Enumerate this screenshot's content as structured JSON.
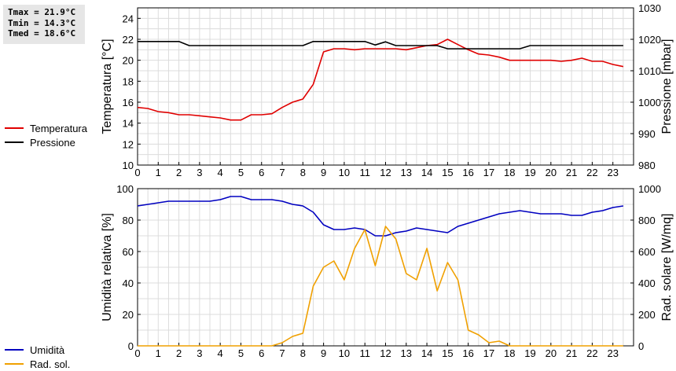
{
  "stats": {
    "tmax": "Tmax = 21.9°C",
    "tmin": "Tmin = 14.3°C",
    "tmed": "Tmed = 18.6°C"
  },
  "chart_data": [
    {
      "type": "line",
      "xlim": [
        0,
        24
      ],
      "x_ticks": [
        "0",
        "1",
        "2",
        "3",
        "4",
        "5",
        "6",
        "7",
        "8",
        "9",
        "10",
        "11",
        "12",
        "13",
        "14",
        "15",
        "16",
        "17",
        "18",
        "19",
        "20",
        "21",
        "22",
        "23"
      ],
      "ylabel_left": "Temperatura [°C]",
      "ylabel_right": "Pressione [mbar]",
      "ylim_left": [
        10,
        25
      ],
      "yticks_left": [
        10,
        12,
        14,
        16,
        18,
        20,
        22,
        24
      ],
      "ylim_right": [
        980,
        1030
      ],
      "yticks_right": [
        980,
        990,
        1000,
        1010,
        1020,
        1030
      ],
      "grid": true,
      "series": [
        {
          "name": "Temperatura",
          "axis": "left",
          "color": "#e00000",
          "x": [
            0,
            0.5,
            1,
            1.5,
            2,
            2.5,
            3,
            3.5,
            4,
            4.5,
            5,
            5.5,
            6,
            6.5,
            7,
            7.5,
            8,
            8.5,
            9,
            9.5,
            10,
            10.5,
            11,
            11.5,
            12,
            12.5,
            13,
            13.5,
            14,
            14.5,
            15,
            15.5,
            16,
            16.5,
            17,
            17.5,
            18,
            18.5,
            19,
            19.5,
            20,
            20.5,
            21,
            21.5,
            22,
            22.5,
            23,
            23.5
          ],
          "y": [
            15.5,
            15.4,
            15.1,
            15.0,
            14.8,
            14.8,
            14.7,
            14.6,
            14.5,
            14.3,
            14.3,
            14.8,
            14.8,
            14.9,
            15.5,
            16.0,
            16.3,
            17.7,
            20.8,
            21.1,
            21.1,
            21.0,
            21.1,
            21.1,
            21.1,
            21.1,
            21.0,
            21.2,
            21.4,
            21.5,
            22.0,
            21.5,
            21.0,
            20.6,
            20.5,
            20.3,
            20.0,
            20.0,
            20.0,
            20.0,
            20.0,
            19.9,
            20.0,
            20.2,
            19.9,
            19.9,
            19.6,
            19.4
          ]
        },
        {
          "name": "Pressione",
          "axis": "right",
          "color": "#000000",
          "x": [
            0,
            2,
            2.5,
            8,
            8.5,
            11,
            11.5,
            12,
            12.5,
            14.5,
            15,
            18.5,
            19,
            23.5
          ],
          "y": [
            1019.3,
            1019.3,
            1018.0,
            1018.0,
            1019.3,
            1019.3,
            1018.2,
            1019.2,
            1018.0,
            1018.0,
            1017.0,
            1017.0,
            1018.0,
            1018.0
          ]
        }
      ]
    },
    {
      "type": "line",
      "xlim": [
        0,
        24
      ],
      "x_ticks": [
        "0",
        "1",
        "2",
        "3",
        "4",
        "5",
        "6",
        "7",
        "8",
        "9",
        "10",
        "11",
        "12",
        "13",
        "14",
        "15",
        "16",
        "17",
        "18",
        "19",
        "20",
        "21",
        "22",
        "23"
      ],
      "ylabel_left": "Umidità relativa [%]",
      "ylabel_right": "Rad. solare [W/mq]",
      "ylim_left": [
        0,
        100
      ],
      "yticks_left": [
        0,
        20,
        40,
        60,
        80,
        100
      ],
      "ylim_right": [
        0,
        1000
      ],
      "yticks_right": [
        0,
        200,
        400,
        600,
        800,
        1000
      ],
      "grid": true,
      "series": [
        {
          "name": "Umidità",
          "axis": "left",
          "color": "#0000c0",
          "x": [
            0,
            1,
            1.5,
            2,
            3,
            3.5,
            4,
            4.5,
            5,
            5.5,
            6,
            6.5,
            7,
            7.5,
            8,
            8.5,
            9,
            9.5,
            10,
            10.5,
            11,
            11.5,
            12,
            12.5,
            13,
            13.5,
            14,
            14.5,
            15,
            15.5,
            16,
            16.5,
            17,
            17.5,
            18,
            18.5,
            19,
            19.5,
            20,
            20.5,
            21,
            21.5,
            22,
            22.5,
            23,
            23.5
          ],
          "y": [
            89,
            91,
            92,
            92,
            92,
            92,
            93,
            95,
            95,
            93,
            93,
            93,
            92,
            90,
            89,
            85,
            77,
            74,
            74,
            75,
            74,
            70,
            70,
            72,
            73,
            75,
            74,
            73,
            72,
            76,
            78,
            80,
            82,
            84,
            85,
            86,
            85,
            84,
            84,
            84,
            83,
            83,
            85,
            86,
            88,
            89
          ]
        },
        {
          "name": "Rad. sol.",
          "axis": "right",
          "color": "#f0a000",
          "x": [
            0,
            6.5,
            7,
            7.5,
            8,
            8.5,
            9,
            9.5,
            10,
            10.5,
            11,
            11.5,
            12,
            12.5,
            13,
            13.5,
            14,
            14.5,
            15,
            15.5,
            16,
            16.5,
            17,
            17.5,
            18,
            23.5
          ],
          "y": [
            0,
            0,
            20,
            60,
            80,
            380,
            500,
            540,
            420,
            620,
            740,
            510,
            760,
            680,
            460,
            420,
            620,
            350,
            530,
            420,
            100,
            70,
            20,
            30,
            0,
            0
          ]
        }
      ]
    }
  ]
}
